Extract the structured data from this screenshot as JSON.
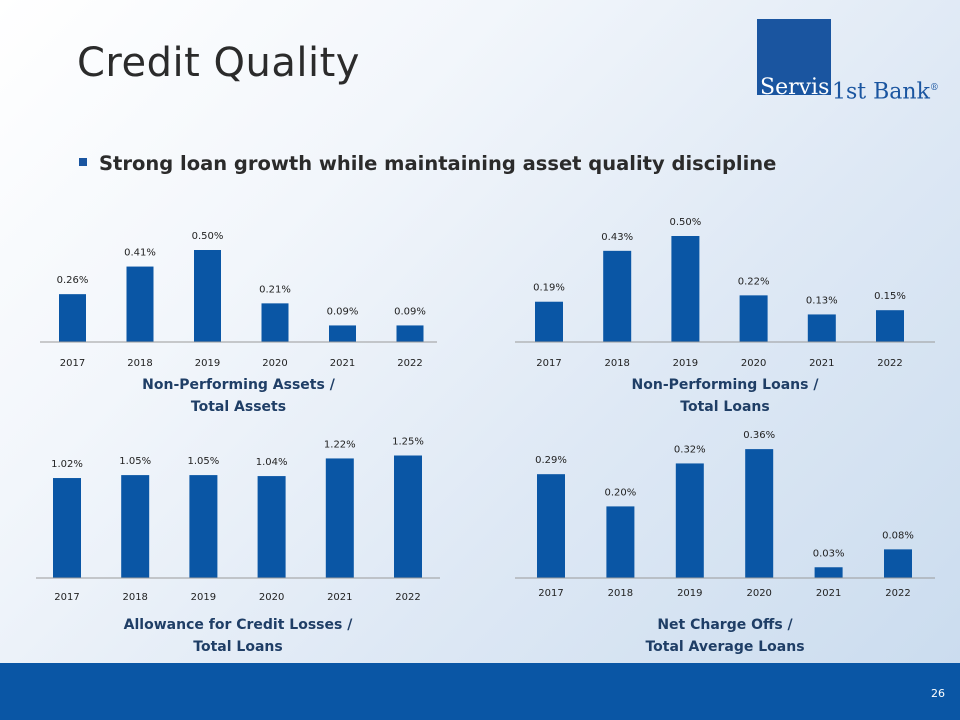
{
  "slide": {
    "title": "Credit Quality",
    "bullet": "Strong loan growth while maintaining asset quality discipline",
    "page_number": "26"
  },
  "logo": {
    "part1": "Servis",
    "part2": "1st Bank",
    "reg": "®",
    "color": "#1a55a0"
  },
  "colors": {
    "bar": "#0a56a5",
    "footer": "#0a56a5"
  },
  "chart_data": [
    {
      "type": "bar",
      "title": "Non-Performing Assets / Total Assets",
      "title_lines": [
        "Non-Performing Assets /",
        "Total Assets"
      ],
      "categories": [
        "2017",
        "2018",
        "2019",
        "2020",
        "2021",
        "2022"
      ],
      "values": [
        0.26,
        0.41,
        0.5,
        0.21,
        0.09,
        0.09
      ],
      "labels": [
        "0.26%",
        "0.41%",
        "0.50%",
        "0.21%",
        "0.09%",
        "0.09%"
      ],
      "unit": "%"
    },
    {
      "type": "bar",
      "title": "Non-Performing Loans / Total Loans",
      "title_lines": [
        "Non-Performing Loans /",
        "Total Loans"
      ],
      "categories": [
        "2017",
        "2018",
        "2019",
        "2020",
        "2021",
        "2022"
      ],
      "values": [
        0.19,
        0.43,
        0.5,
        0.22,
        0.13,
        0.15
      ],
      "labels": [
        "0.19%",
        "0.43%",
        "0.50%",
        "0.22%",
        "0.13%",
        "0.15%"
      ],
      "unit": "%"
    },
    {
      "type": "bar",
      "title": "Allowance for Credit Losses / Total Loans",
      "title_lines": [
        "Allowance for Credit Losses /",
        "Total Loans"
      ],
      "categories": [
        "2017",
        "2018",
        "2019",
        "2020",
        "2021",
        "2022"
      ],
      "values": [
        1.02,
        1.05,
        1.05,
        1.04,
        1.22,
        1.25
      ],
      "labels": [
        "1.02%",
        "1.05%",
        "1.05%",
        "1.04%",
        "1.22%",
        "1.25%"
      ],
      "unit": "%"
    },
    {
      "type": "bar",
      "title": "Net Charge Offs / Total Average Loans",
      "title_lines": [
        "Net Charge Offs /",
        "Total Average Loans"
      ],
      "categories": [
        "2017",
        "2018",
        "2019",
        "2020",
        "2021",
        "2022"
      ],
      "values": [
        0.29,
        0.2,
        0.32,
        0.36,
        0.03,
        0.08
      ],
      "labels": [
        "0.29%",
        "0.20%",
        "0.32%",
        "0.36%",
        "0.03%",
        "0.08%"
      ],
      "unit": "%"
    }
  ]
}
